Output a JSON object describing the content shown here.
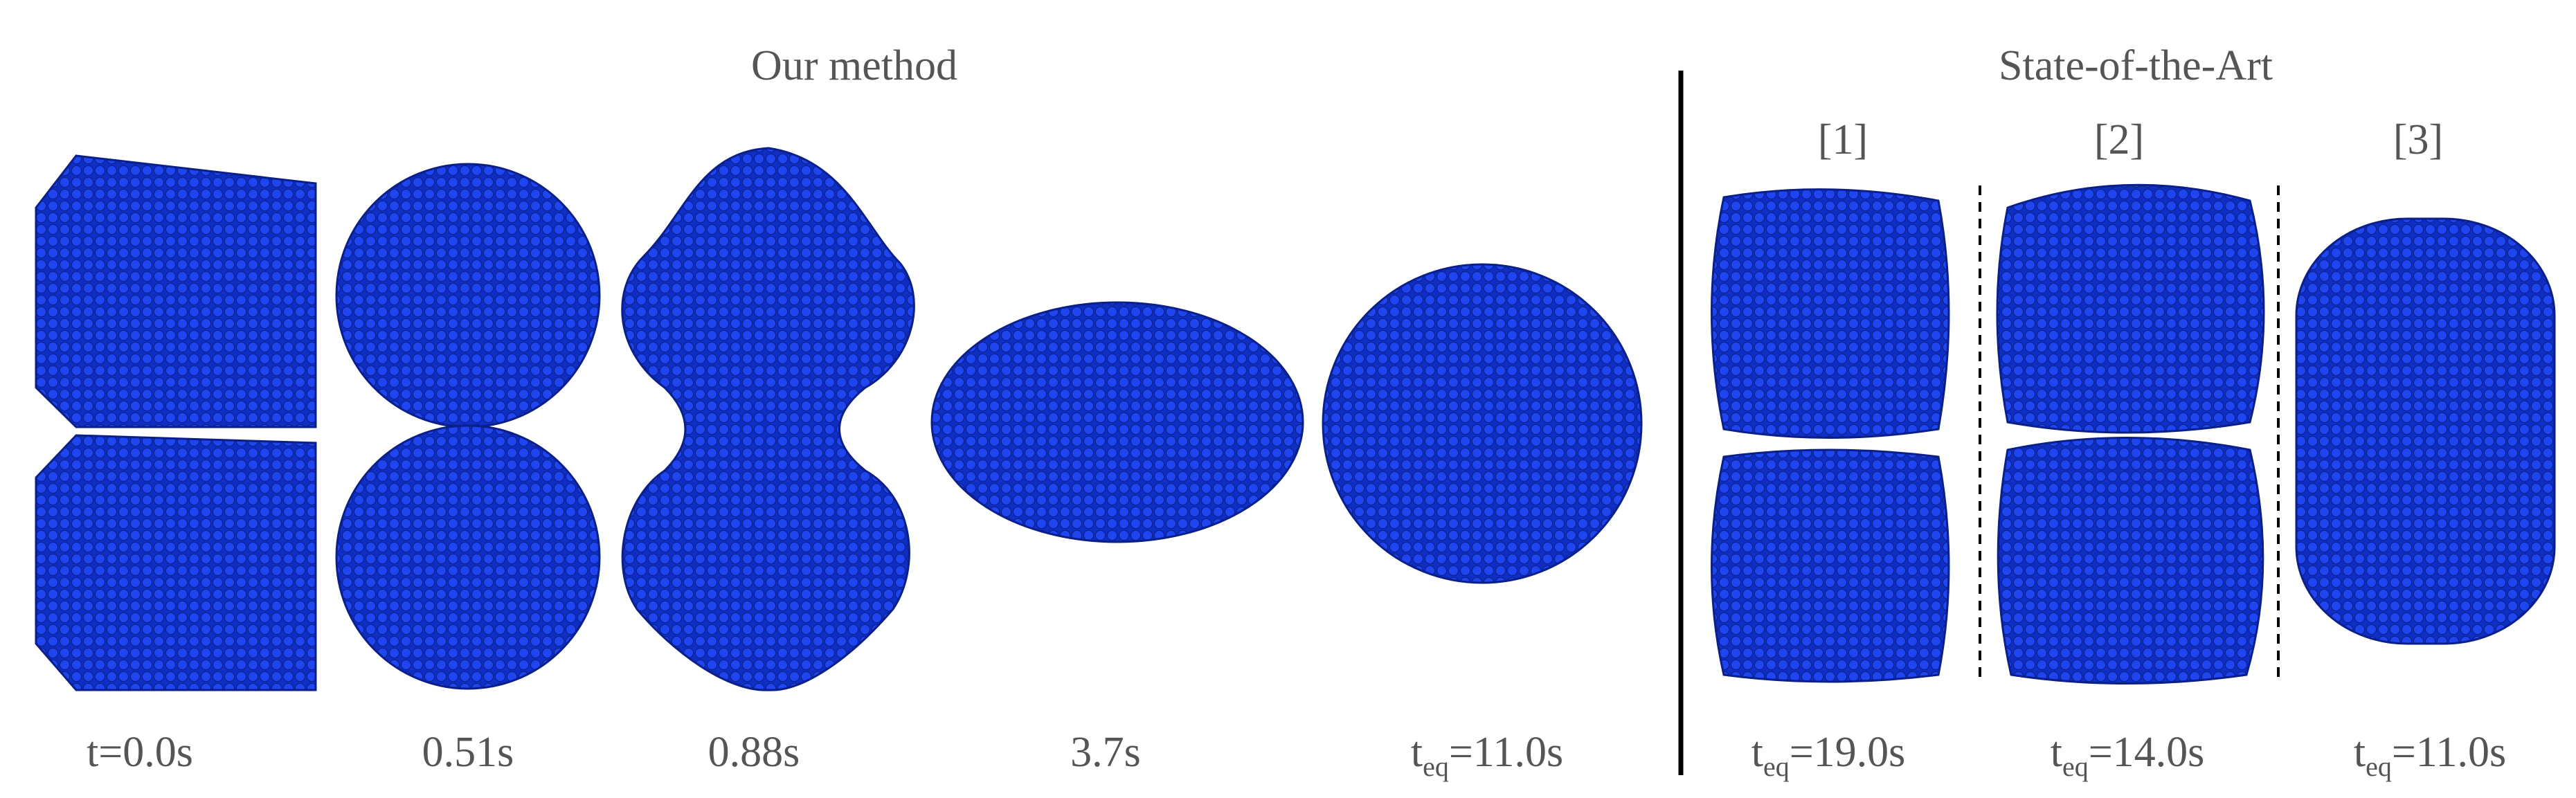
{
  "header": {
    "left_title": "Our method",
    "right_title": "State-of-the-Art"
  },
  "references": [
    "[1]",
    "[2]",
    "[3]"
  ],
  "our_method_labels": [
    "t=0.0s",
    "0.51s",
    "0.88s",
    "3.7s",
    {
      "main": "t",
      "sub": "eq",
      "rest": "=11.0s"
    }
  ],
  "sota_labels": [
    {
      "main": "t",
      "sub": "eq",
      "rest": "=19.0s"
    },
    {
      "main": "t",
      "sub": "eq",
      "rest": "=14.0s"
    },
    {
      "main": "t",
      "sub": "eq",
      "rest": "=11.0s"
    }
  ]
}
